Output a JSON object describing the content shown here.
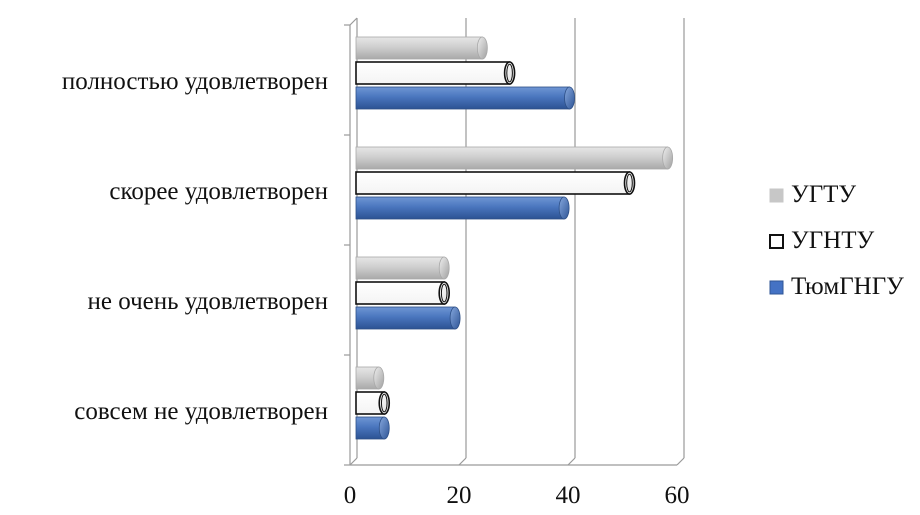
{
  "chart_data": {
    "type": "bar",
    "orientation": "horizontal",
    "title": "",
    "xlabel": "",
    "ylabel": "",
    "categories": [
      "полностью удовлетворен",
      "скорее удовлетворен",
      "не очень удовлетворен",
      "совсем не удовлетворен"
    ],
    "series": [
      {
        "name": "УГТУ",
        "values": [
          23,
          57,
          16,
          4
        ],
        "color": "#c8c8c8"
      },
      {
        "name": "УГНТУ",
        "values": [
          28,
          50,
          16,
          5
        ],
        "color": "#ffffff"
      },
      {
        "name": "ТюмГНГУ",
        "values": [
          39,
          38,
          18,
          5
        ],
        "color": "#4472c4"
      }
    ],
    "xlim": [
      0,
      60
    ],
    "xticks": [
      "0",
      "20",
      "40",
      "60"
    ],
    "grid": true,
    "legend_position": "right"
  }
}
